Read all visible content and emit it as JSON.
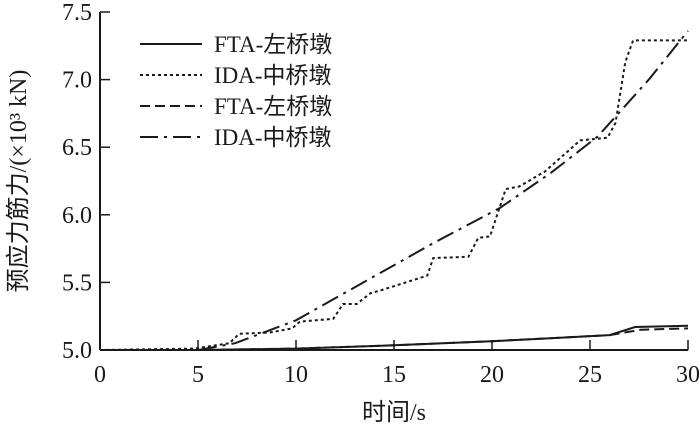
{
  "chart_data": {
    "type": "line",
    "title": "",
    "xlabel": "时间/s",
    "ylabel": "预应力筋力/(×10³ kN)",
    "xlim": [
      0,
      30
    ],
    "ylim": [
      5.0,
      7.5
    ],
    "xticks": [
      0,
      5,
      10,
      15,
      20,
      25,
      30
    ],
    "yticks": [
      5.0,
      5.5,
      6.0,
      6.5,
      7.0,
      7.5
    ],
    "xtick_labels": [
      "0",
      "5",
      "10",
      "15",
      "20",
      "25",
      "30"
    ],
    "ytick_labels": [
      "5.0",
      "5.5",
      "6.0",
      "6.5",
      "7.0",
      "7.5"
    ],
    "grid": false,
    "legend_position": "top-left",
    "series": [
      {
        "name": "FTA-左桥墩",
        "style": "solid",
        "color": "#1a1a1a",
        "points": [
          [
            0,
            5.0
          ],
          [
            5,
            5.0
          ],
          [
            10,
            5.01
          ],
          [
            15,
            5.035
          ],
          [
            20,
            5.065
          ],
          [
            22,
            5.08
          ],
          [
            26,
            5.11
          ],
          [
            27.3,
            5.17
          ],
          [
            30,
            5.18
          ]
        ]
      },
      {
        "name": "IDA-中桥墩",
        "style": "dotted",
        "color": "#1a1a1a",
        "points": [
          [
            0,
            5.0
          ],
          [
            4.8,
            5.01
          ],
          [
            6.6,
            5.05
          ],
          [
            7.1,
            5.12
          ],
          [
            8.7,
            5.13
          ],
          [
            9.8,
            5.16
          ],
          [
            10.2,
            5.21
          ],
          [
            11.9,
            5.23
          ],
          [
            12.4,
            5.34
          ],
          [
            13.1,
            5.34
          ],
          [
            13.8,
            5.42
          ],
          [
            14.3,
            5.44
          ],
          [
            16.7,
            5.55
          ],
          [
            17.0,
            5.68
          ],
          [
            18.8,
            5.69
          ],
          [
            19.3,
            5.83
          ],
          [
            19.9,
            5.84
          ],
          [
            20.7,
            6.19
          ],
          [
            21.4,
            6.21
          ],
          [
            22.7,
            6.32
          ],
          [
            24.5,
            6.55
          ],
          [
            25.9,
            6.57
          ],
          [
            26.3,
            6.68
          ],
          [
            26.8,
            7.13
          ],
          [
            27.2,
            7.29
          ],
          [
            30,
            7.29
          ]
        ]
      },
      {
        "name": "FTA-左桥墩",
        "style": "dashed",
        "color": "#1a1a1a",
        "points": [
          [
            0,
            5.0
          ],
          [
            5,
            5.0
          ],
          [
            10,
            5.01
          ],
          [
            15,
            5.035
          ],
          [
            20,
            5.065
          ],
          [
            22,
            5.08
          ],
          [
            26,
            5.11
          ],
          [
            27.6,
            5.15
          ],
          [
            30,
            5.16
          ]
        ]
      },
      {
        "name": "IDA-中桥墩",
        "style": "dashdot",
        "color": "#1a1a1a",
        "points": [
          [
            0,
            5.0
          ],
          [
            5,
            5.0
          ],
          [
            6.9,
            5.05
          ],
          [
            10,
            5.22
          ],
          [
            14.3,
            5.57
          ],
          [
            17,
            5.79
          ],
          [
            20.4,
            6.05
          ],
          [
            23,
            6.31
          ],
          [
            25.4,
            6.58
          ],
          [
            28,
            7.0
          ],
          [
            30,
            7.36
          ]
        ]
      }
    ]
  }
}
